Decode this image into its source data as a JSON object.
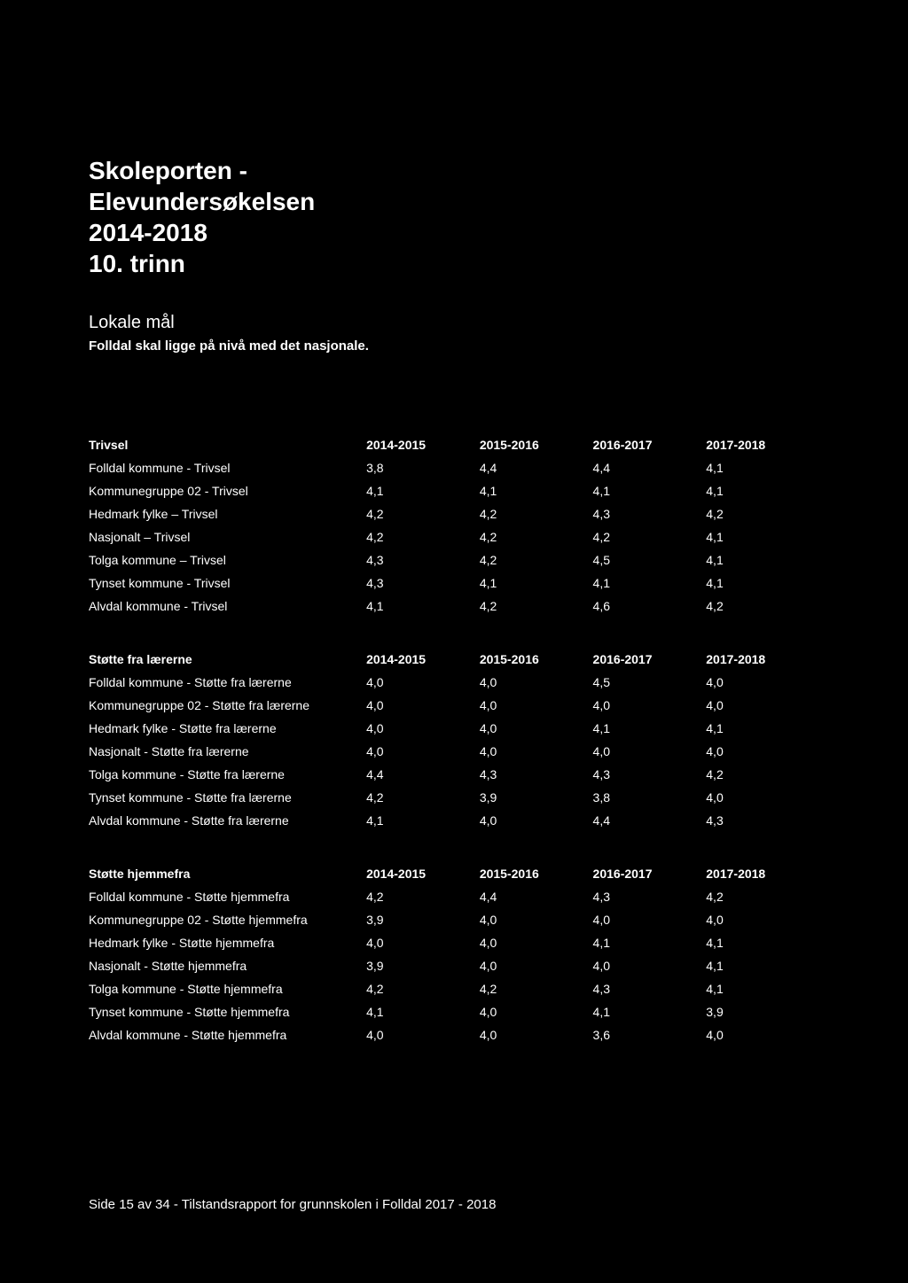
{
  "background_color": "#000000",
  "text_color": "#ffffff",
  "title_fontsize": 28,
  "body_fontsize": 14,
  "title": {
    "line1": "Skoleporten -",
    "line2": "Elevundersøkelsen",
    "line3": "2014-2018",
    "line4": "10. trinn"
  },
  "subtitle": "Lokale mål",
  "subtitle_bold": "Folldal skal ligge på nivå med det nasjonale.",
  "tables": [
    {
      "header": "Trivsel",
      "year_headers": [
        "2014-2015",
        "2015-2016",
        "2016-2017",
        "2017-2018"
      ],
      "rows": [
        {
          "label": "Folldal kommune - Trivsel",
          "v": [
            "3,8",
            "4,4",
            "4,4",
            "4,1"
          ]
        },
        {
          "label": "Kommunegruppe 02 - Trivsel",
          "v": [
            "4,1",
            "4,1",
            "4,1",
            "4,1"
          ]
        },
        {
          "label": "Hedmark fylke – Trivsel",
          "v": [
            "4,2",
            "4,2",
            "4,3",
            "4,2"
          ]
        },
        {
          "label": "Nasjonalt – Trivsel",
          "v": [
            "4,2",
            "4,2",
            "4,2",
            "4,1"
          ]
        },
        {
          "label": "Tolga kommune – Trivsel",
          "v": [
            "4,3",
            "4,2",
            "4,5",
            "4,1"
          ]
        },
        {
          "label": "Tynset kommune - Trivsel",
          "v": [
            "4,3",
            "4,1",
            "4,1",
            "4,1"
          ]
        },
        {
          "label": "Alvdal kommune - Trivsel",
          "v": [
            "4,1",
            "4,2",
            "4,6",
            "4,2"
          ]
        }
      ]
    },
    {
      "header": "Støtte fra lærerne",
      "year_headers": [
        "2014-2015",
        "2015-2016",
        "2016-2017",
        "2017-2018"
      ],
      "rows": [
        {
          "label": "Folldal kommune - Støtte fra lærerne",
          "v": [
            "4,0",
            "4,0",
            "4,5",
            "4,0"
          ]
        },
        {
          "label": "Kommunegruppe 02 - Støtte fra lærerne",
          "v": [
            "4,0",
            "4,0",
            "4,0",
            "4,0"
          ]
        },
        {
          "label": "Hedmark fylke - Støtte fra lærerne",
          "v": [
            "4,0",
            "4,0",
            "4,1",
            "4,1"
          ]
        },
        {
          "label": "Nasjonalt - Støtte fra lærerne",
          "v": [
            "4,0",
            "4,0",
            "4,0",
            "4,0"
          ]
        },
        {
          "label": "Tolga kommune - Støtte fra lærerne",
          "v": [
            "4,4",
            "4,3",
            "4,3",
            "4,2"
          ]
        },
        {
          "label": "Tynset kommune - Støtte fra lærerne",
          "v": [
            "4,2",
            "3,9",
            "3,8",
            "4,0"
          ]
        },
        {
          "label": "Alvdal kommune - Støtte fra lærerne",
          "v": [
            "4,1",
            "4,0",
            "4,4",
            "4,3"
          ]
        }
      ]
    },
    {
      "header": "Støtte hjemmefra",
      "year_headers": [
        "2014-2015",
        "2015-2016",
        "2016-2017",
        "2017-2018"
      ],
      "rows": [
        {
          "label": "Folldal kommune - Støtte hjemmefra",
          "v": [
            "4,2",
            "4,4",
            "4,3",
            "4,2"
          ]
        },
        {
          "label": "Kommunegruppe 02 - Støtte hjemmefra",
          "v": [
            "3,9",
            "4,0",
            "4,0",
            "4,0"
          ]
        },
        {
          "label": "Hedmark fylke - Støtte hjemmefra",
          "v": [
            "4,0",
            "4,0",
            "4,1",
            "4,1"
          ]
        },
        {
          "label": "Nasjonalt - Støtte hjemmefra",
          "v": [
            "3,9",
            "4,0",
            "4,0",
            "4,1"
          ]
        },
        {
          "label": "Tolga kommune - Støtte hjemmefra",
          "v": [
            "4,2",
            "4,2",
            "4,3",
            "4,1"
          ]
        },
        {
          "label": "Tynset kommune - Støtte hjemmefra",
          "v": [
            "4,1",
            "4,0",
            "4,1",
            "3,9"
          ]
        },
        {
          "label": "Alvdal kommune - Støtte hjemmefra",
          "v": [
            "4,0",
            "4,0",
            "3,6",
            "4,0"
          ]
        }
      ]
    }
  ],
  "footer": "Side 15 av 34 - Tilstandsrapport for grunnskolen i Folldal 2017 - 2018"
}
